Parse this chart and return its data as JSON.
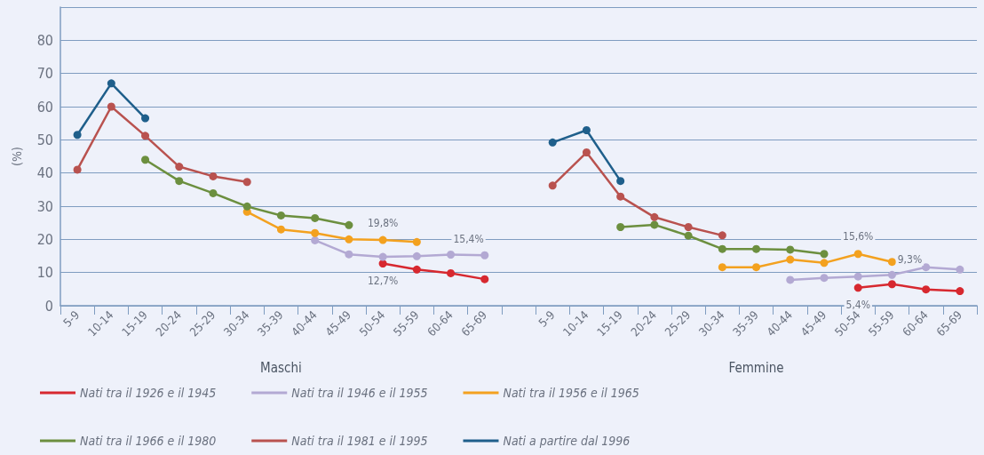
{
  "chart_data": {
    "type": "line",
    "ylabel": "(%)",
    "categories": [
      "5-9",
      "10-14",
      "15-19",
      "20-24",
      "25-29",
      "30-34",
      "35-39",
      "40-44",
      "45-49",
      "50-54",
      "55-59",
      "60-64",
      "65-69",
      null,
      "5-9",
      "10-14",
      "15-19",
      "20-24",
      "25-29",
      "30-34",
      "35-39",
      "40-44",
      "45-49",
      "50-54",
      "55-59",
      "60-64",
      "65-69"
    ],
    "series": [
      {
        "name": "Nati tra il 1926 e il 1945",
        "color": "#d7282f",
        "values": [
          null,
          null,
          null,
          null,
          null,
          null,
          null,
          null,
          null,
          12.7,
          10.9,
          9.8,
          8.0,
          null,
          null,
          null,
          null,
          null,
          null,
          null,
          null,
          null,
          null,
          5.4,
          6.5,
          4.9,
          4.4
        ],
        "value_labels": [
          null,
          null,
          null,
          null,
          null,
          null,
          null,
          null,
          null,
          "12,7%",
          null,
          null,
          null,
          null,
          null,
          null,
          null,
          null,
          null,
          null,
          null,
          null,
          null,
          "5,4%",
          null,
          null,
          null
        ]
      },
      {
        "name": "Nati tra il 1946 e il 1955",
        "color": "#b3a9d3",
        "values": [
          null,
          null,
          null,
          null,
          null,
          null,
          null,
          19.7,
          15.5,
          14.7,
          14.9,
          15.4,
          15.2,
          null,
          null,
          null,
          null,
          null,
          null,
          null,
          null,
          7.8,
          8.4,
          8.8,
          9.3,
          11.6,
          10.9
        ],
        "value_labels": [
          null,
          null,
          null,
          null,
          null,
          null,
          null,
          null,
          null,
          null,
          null,
          "15,4%",
          null,
          null,
          null,
          null,
          null,
          null,
          null,
          null,
          null,
          null,
          null,
          null,
          "9,3%",
          null,
          null
        ]
      },
      {
        "name": "Nati tra il 1956 e il 1965",
        "color": "#f3a11f",
        "values": [
          null,
          null,
          null,
          null,
          null,
          28.3,
          23.0,
          21.9,
          20.0,
          19.8,
          19.2,
          null,
          null,
          null,
          null,
          null,
          null,
          null,
          null,
          11.6,
          11.6,
          13.9,
          12.9,
          15.6,
          13.2,
          null,
          null
        ],
        "value_labels": [
          null,
          null,
          null,
          null,
          null,
          null,
          null,
          null,
          null,
          "19,8%",
          null,
          null,
          null,
          null,
          null,
          null,
          null,
          null,
          null,
          null,
          null,
          null,
          null,
          "15,6%",
          null,
          null,
          null
        ]
      },
      {
        "name": "Nati tra il 1966 e il 1980",
        "color": "#6c8f3f",
        "values": [
          null,
          null,
          44.0,
          37.6,
          33.9,
          29.9,
          27.2,
          26.4,
          24.3,
          null,
          null,
          null,
          null,
          null,
          null,
          null,
          23.7,
          24.4,
          21.1,
          17.1,
          17.1,
          16.9,
          15.6,
          null,
          null,
          null,
          null
        ]
      },
      {
        "name": "Nati tra il 1981 e il 1995",
        "color": "#b9524f",
        "values": [
          41.0,
          60.0,
          51.2,
          41.9,
          39.0,
          37.3,
          null,
          null,
          null,
          null,
          null,
          null,
          null,
          null,
          36.2,
          46.2,
          32.9,
          26.7,
          23.7,
          21.2,
          null,
          null,
          null,
          null,
          null,
          null,
          null
        ]
      },
      {
        "name": "Nati a partire dal 1996",
        "color": "#1f5f8b",
        "values": [
          51.5,
          67.0,
          56.5,
          null,
          null,
          null,
          null,
          null,
          null,
          null,
          null,
          null,
          null,
          null,
          49.2,
          52.9,
          37.6,
          null,
          null,
          null,
          null,
          null,
          null,
          null,
          null,
          null,
          null
        ]
      }
    ],
    "ylim": [
      0,
      90
    ],
    "yticks": [
      0,
      10,
      20,
      30,
      40,
      50,
      60,
      70,
      80,
      {
        "value": 90,
        "label": null
      }
    ],
    "grid": "y",
    "legend": "bottom",
    "marker": "circle",
    "line_style": "solid",
    "annotations": [
      "Maschi",
      "Femmine"
    ]
  }
}
